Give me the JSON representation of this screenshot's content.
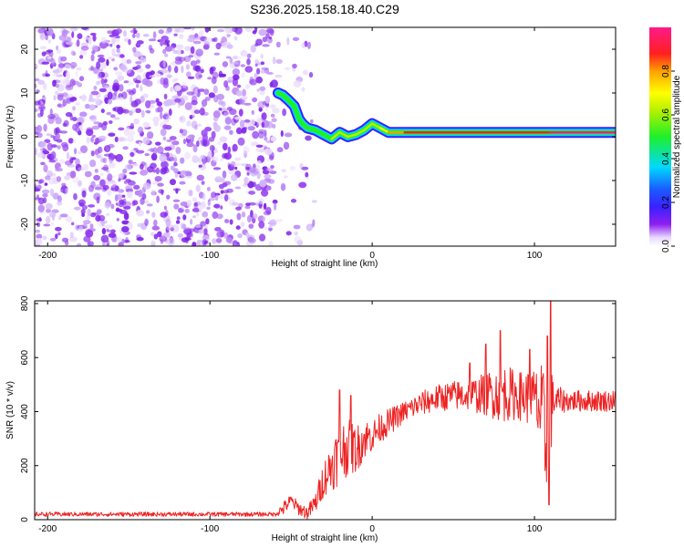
{
  "title": "S236.2025.158.18.40.C29",
  "colors": {
    "background": "#ffffff",
    "snr_line": "#ee2222",
    "noise_speckle": "#7b1fe8",
    "frame": "#000000"
  },
  "chart_data": [
    {
      "type": "heatmap",
      "xlabel": "Height of straight line (km)",
      "ylabel": "Frequency (Hz)",
      "xlim": [
        -208,
        150
      ],
      "ylim": [
        -25,
        25
      ],
      "xticks": [
        -200,
        -100,
        0,
        100
      ],
      "yticks": [
        -20,
        -10,
        0,
        10,
        20
      ],
      "grid": false,
      "colorbar": {
        "label": "Normalized spectral amplitude",
        "range": [
          0.0,
          1.0
        ],
        "ticks": [
          0.0,
          0.2,
          0.4,
          0.6,
          0.8
        ],
        "tick_labels": [
          "0.0",
          "0.2",
          "0.4",
          "0.6",
          "0.8"
        ],
        "colormap": "rainbow (white → violet → blue → cyan → green → yellow → orange → red → magenta)"
      },
      "signal_track": {
        "description": "frequency ridge of the strongest signal",
        "x": [
          -58,
          -55,
          -52,
          -48,
          -45,
          -43,
          -40,
          -35,
          -30,
          -25,
          -20,
          -15,
          -10,
          -5,
          0,
          5,
          10,
          20,
          40,
          60,
          80,
          100,
          110,
          130,
          150
        ],
        "y": [
          10,
          9.5,
          8.5,
          7,
          4,
          3,
          2,
          1.5,
          0.5,
          -0.5,
          1,
          0,
          0.5,
          1.5,
          3,
          2,
          1,
          1,
          1,
          1,
          1,
          1,
          1,
          1,
          1
        ],
        "amplitude": [
          0.45,
          0.45,
          0.45,
          0.4,
          0.4,
          0.4,
          0.4,
          0.4,
          0.45,
          0.55,
          0.5,
          0.55,
          0.55,
          0.55,
          0.55,
          0.6,
          0.7,
          0.85,
          0.85,
          0.85,
          0.85,
          0.85,
          0.9,
          0.9,
          0.9
        ]
      },
      "noise_region": {
        "description": "scattered low-amplitude noise",
        "x_range": [
          -208,
          -35
        ],
        "y_range": [
          -25,
          25
        ],
        "amplitude_range": [
          0.05,
          0.2
        ]
      }
    },
    {
      "type": "line",
      "xlabel": "Height of straight line (km)",
      "ylabel": "SNR (10 * v/v)",
      "xlim": [
        -208,
        150
      ],
      "ylim": [
        0,
        810
      ],
      "xticks": [
        -200,
        -100,
        0,
        100
      ],
      "yticks": [
        0,
        200,
        400,
        600,
        800
      ],
      "grid": false,
      "series": [
        {
          "trend_x": [
            -208,
            -150,
            -100,
            -60,
            -55,
            -50,
            -45,
            -40,
            -35,
            -30,
            -25,
            -20,
            -15,
            -10,
            -5,
            0,
            5,
            10,
            20,
            30,
            40,
            50,
            60,
            70,
            80,
            90,
            100,
            105,
            108,
            110,
            112,
            120,
            130,
            140,
            150
          ],
          "trend_y": [
            20,
            20,
            20,
            20,
            40,
            70,
            40,
            25,
            60,
            150,
            200,
            250,
            270,
            260,
            300,
            310,
            340,
            360,
            400,
            430,
            450,
            460,
            460,
            465,
            470,
            460,
            450,
            380,
            200,
            400,
            440,
            440,
            440,
            440,
            440
          ],
          "noise_amplitude_x": [
            -208,
            -60,
            -55,
            -40,
            -35,
            -20,
            -10,
            0,
            20,
            40,
            60,
            70,
            80,
            90,
            100,
            105,
            108,
            110,
            112,
            120,
            150
          ],
          "noise_amplitude_y": [
            8,
            8,
            25,
            25,
            40,
            120,
            90,
            60,
            40,
            50,
            60,
            80,
            110,
            90,
            110,
            200,
            200,
            180,
            60,
            40,
            40
          ],
          "peaks": [
            {
              "x": -20,
              "y": 480
            },
            {
              "x": -13,
              "y": 460
            },
            {
              "x": 60,
              "y": 580
            },
            {
              "x": 70,
              "y": 650
            },
            {
              "x": 79,
              "y": 700
            },
            {
              "x": 97,
              "y": 630
            },
            {
              "x": 108,
              "y": 680
            },
            {
              "x": 110,
              "y": 810
            }
          ],
          "dips": [
            {
              "x": 109,
              "y": 55
            }
          ]
        }
      ]
    }
  ]
}
